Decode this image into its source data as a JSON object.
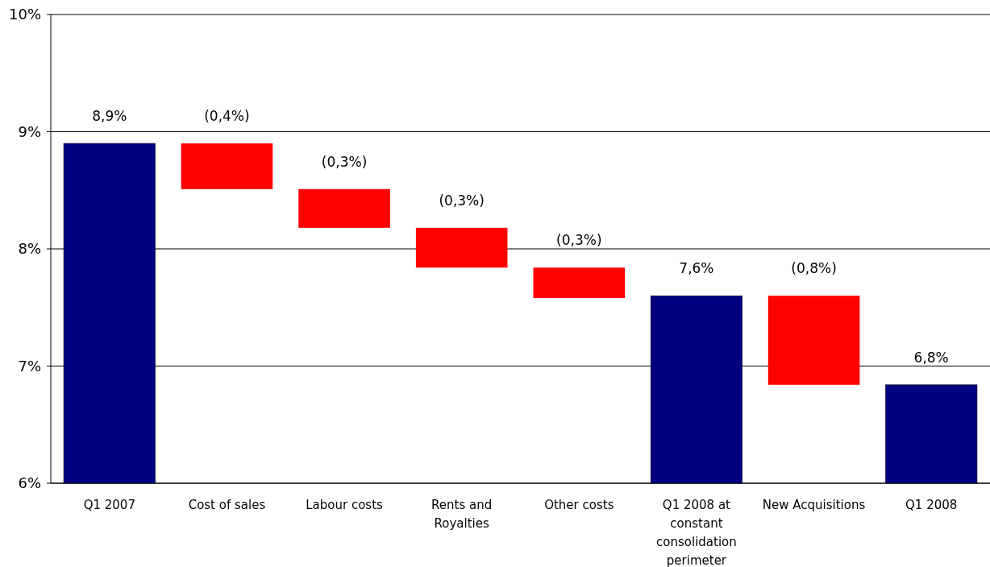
{
  "chart_data": {
    "type": "bar",
    "categories": [
      "Q1 2007",
      "Cost of sales",
      "Labour costs",
      "Rents and Royalties",
      "Other costs",
      "Q1 2008 at constant consolidation perimeter",
      "New Acquisitions",
      "Q1 2008"
    ],
    "values": [
      2.9,
      -0.39,
      -0.33,
      -0.34,
      -0.26,
      1.6,
      -0.76,
      0.84
    ],
    "base": [
      6,
      8.9,
      8.51,
      8.18,
      7.84,
      6,
      7.6,
      6
    ],
    "colors": [
      "#000080",
      "#ff0000",
      "#ff0000",
      "#ff0000",
      "#ff0000",
      "#000080",
      "#ff0000",
      "#000080"
    ],
    "value_labels": [
      "8,9%",
      "(0,4%)",
      "(0,3%)",
      "(0,3%)",
      "(0,3%)",
      "7,6%",
      "(0,8%)",
      "6,8%"
    ],
    "ylim": [
      6,
      10
    ],
    "yticks": [
      {
        "value": 6,
        "label": "6%"
      },
      {
        "value": 7,
        "label": "7%"
      },
      {
        "value": 8,
        "label": "8%"
      },
      {
        "value": 9,
        "label": "9%"
      },
      {
        "value": 10,
        "label": "10%"
      }
    ],
    "grid": "y"
  }
}
